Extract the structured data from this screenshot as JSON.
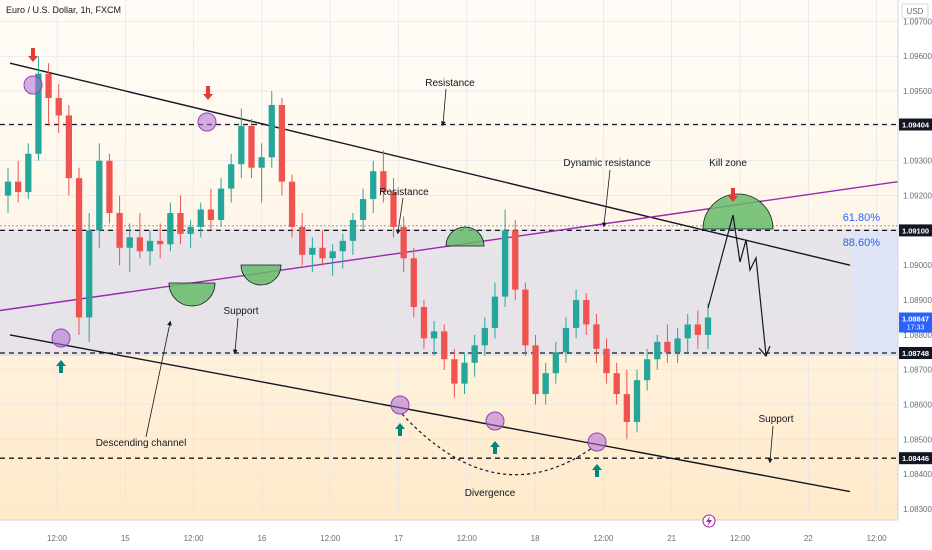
{
  "header": {
    "symbol_title": "Euro / U.S. Dollar, 1h, FXCM",
    "currency": "USD"
  },
  "chart_data": {
    "type": "candlestick",
    "title": "Euro / U.S. Dollar, 1h, FXCM",
    "ylim": [
      1.0828,
      1.0975
    ],
    "y_ticks": [
      1.083,
      1.084,
      1.085,
      1.086,
      1.087,
      1.088,
      1.089,
      1.09,
      1.091,
      1.092,
      1.093,
      1.094,
      1.095,
      1.096,
      1.097
    ],
    "x_labels": [
      "12:00",
      "15",
      "12:00",
      "16",
      "12:00",
      "17",
      "12:00",
      "18",
      "12:00",
      "21",
      "12:00",
      "22",
      "12:00"
    ],
    "grid": true,
    "price_badges": [
      {
        "value": "1.09404",
        "style": "dark"
      },
      {
        "value": "1.09100",
        "style": "dark"
      },
      {
        "value": "1.08847",
        "sub": "17:33",
        "style": "blue"
      },
      {
        "value": "1.08748",
        "style": "dark"
      },
      {
        "value": "1.08446",
        "style": "dark"
      }
    ],
    "horizontal_levels": [
      1.09404,
      1.091,
      1.08748,
      1.08446
    ],
    "fib_labels": [
      "61.80%",
      "88.60%"
    ],
    "annotations": {
      "resistance_top": "Resistance",
      "resistance_mid": "Resistance",
      "dynamic_resistance": "Dynamic resistance",
      "kill_zone": "Kill zone",
      "support_mid": "Support",
      "support_right": "Support",
      "descending_channel": "Descending channel",
      "divergence": "Divergence"
    },
    "candles": [
      [
        1.092,
        1.0928,
        1.0915,
        1.0924
      ],
      [
        1.0924,
        1.093,
        1.0918,
        1.0921
      ],
      [
        1.0921,
        1.0935,
        1.0919,
        1.0932
      ],
      [
        1.0932,
        1.096,
        1.093,
        1.0955
      ],
      [
        1.0955,
        1.0958,
        1.094,
        1.0948
      ],
      [
        1.0948,
        1.0952,
        1.0938,
        1.0943
      ],
      [
        1.0943,
        1.0946,
        1.092,
        1.0925
      ],
      [
        1.0925,
        1.0928,
        1.088,
        1.0885
      ],
      [
        1.0885,
        1.0915,
        1.0878,
        1.091
      ],
      [
        1.091,
        1.0935,
        1.0905,
        1.093
      ],
      [
        1.093,
        1.0932,
        1.0912,
        1.0915
      ],
      [
        1.0915,
        1.092,
        1.09,
        1.0905
      ],
      [
        1.0905,
        1.0912,
        1.0898,
        1.0908
      ],
      [
        1.0908,
        1.0915,
        1.0902,
        1.0904
      ],
      [
        1.0904,
        1.091,
        1.09,
        1.0907
      ],
      [
        1.0907,
        1.0912,
        1.0902,
        1.0906
      ],
      [
        1.0906,
        1.0918,
        1.0904,
        1.0915
      ],
      [
        1.0915,
        1.092,
        1.0906,
        1.0909
      ],
      [
        1.0909,
        1.0913,
        1.0905,
        1.0911
      ],
      [
        1.0911,
        1.0918,
        1.0908,
        1.0916
      ],
      [
        1.0916,
        1.0922,
        1.091,
        1.0913
      ],
      [
        1.0913,
        1.0925,
        1.0911,
        1.0922
      ],
      [
        1.0922,
        1.0932,
        1.0918,
        1.0929
      ],
      [
        1.0929,
        1.0945,
        1.0925,
        1.094
      ],
      [
        1.094,
        1.0942,
        1.0925,
        1.0928
      ],
      [
        1.0928,
        1.0935,
        1.0918,
        1.0931
      ],
      [
        1.0931,
        1.095,
        1.0928,
        1.0946
      ],
      [
        1.0946,
        1.0948,
        1.092,
        1.0924
      ],
      [
        1.0924,
        1.0926,
        1.0908,
        1.0911
      ],
      [
        1.0911,
        1.0915,
        1.09,
        1.0903
      ],
      [
        1.0903,
        1.0908,
        1.0898,
        1.0905
      ],
      [
        1.0905,
        1.091,
        1.09,
        1.0902
      ],
      [
        1.0902,
        1.0906,
        1.0897,
        1.0904
      ],
      [
        1.0904,
        1.0909,
        1.0899,
        1.0907
      ],
      [
        1.0907,
        1.0915,
        1.0903,
        1.0913
      ],
      [
        1.0913,
        1.0922,
        1.091,
        1.0919
      ],
      [
        1.0919,
        1.093,
        1.0915,
        1.0927
      ],
      [
        1.0927,
        1.0933,
        1.0918,
        1.0921
      ],
      [
        1.0921,
        1.0925,
        1.0908,
        1.0911
      ],
      [
        1.0911,
        1.0914,
        1.0898,
        1.0902
      ],
      [
        1.0902,
        1.0905,
        1.0885,
        1.0888
      ],
      [
        1.0888,
        1.089,
        1.0876,
        1.0879
      ],
      [
        1.0879,
        1.0884,
        1.0874,
        1.0881
      ],
      [
        1.0881,
        1.0883,
        1.087,
        1.0873
      ],
      [
        1.0873,
        1.0876,
        1.0862,
        1.0866
      ],
      [
        1.0866,
        1.0875,
        1.0863,
        1.0872
      ],
      [
        1.0872,
        1.088,
        1.0868,
        1.0877
      ],
      [
        1.0877,
        1.0885,
        1.0874,
        1.0882
      ],
      [
        1.0882,
        1.0895,
        1.0879,
        1.0891
      ],
      [
        1.0891,
        1.0916,
        1.0888,
        1.091
      ],
      [
        1.091,
        1.0913,
        1.089,
        1.0893
      ],
      [
        1.0893,
        1.0895,
        1.0874,
        1.0877
      ],
      [
        1.0877,
        1.088,
        1.086,
        1.0863
      ],
      [
        1.0863,
        1.0872,
        1.086,
        1.0869
      ],
      [
        1.0869,
        1.0878,
        1.0866,
        1.0875
      ],
      [
        1.0875,
        1.0885,
        1.0872,
        1.0882
      ],
      [
        1.0882,
        1.0893,
        1.0879,
        1.089
      ],
      [
        1.089,
        1.0892,
        1.088,
        1.0883
      ],
      [
        1.0883,
        1.0886,
        1.0872,
        1.0876
      ],
      [
        1.0876,
        1.0879,
        1.0866,
        1.0869
      ],
      [
        1.0869,
        1.0872,
        1.086,
        1.0863
      ],
      [
        1.0863,
        1.087,
        1.085,
        1.0855
      ],
      [
        1.0855,
        1.087,
        1.0852,
        1.0867
      ],
      [
        1.0867,
        1.0876,
        1.0864,
        1.0873
      ],
      [
        1.0873,
        1.088,
        1.087,
        1.0878
      ],
      [
        1.0878,
        1.0883,
        1.0872,
        1.0875
      ],
      [
        1.0875,
        1.0882,
        1.0872,
        1.0879
      ],
      [
        1.0879,
        1.0886,
        1.0875,
        1.0883
      ],
      [
        1.0883,
        1.0887,
        1.0876,
        1.088
      ],
      [
        1.088,
        1.0889,
        1.0876,
        1.0885
      ]
    ]
  },
  "footer": {
    "lightning_icon": "lightning-icon"
  }
}
